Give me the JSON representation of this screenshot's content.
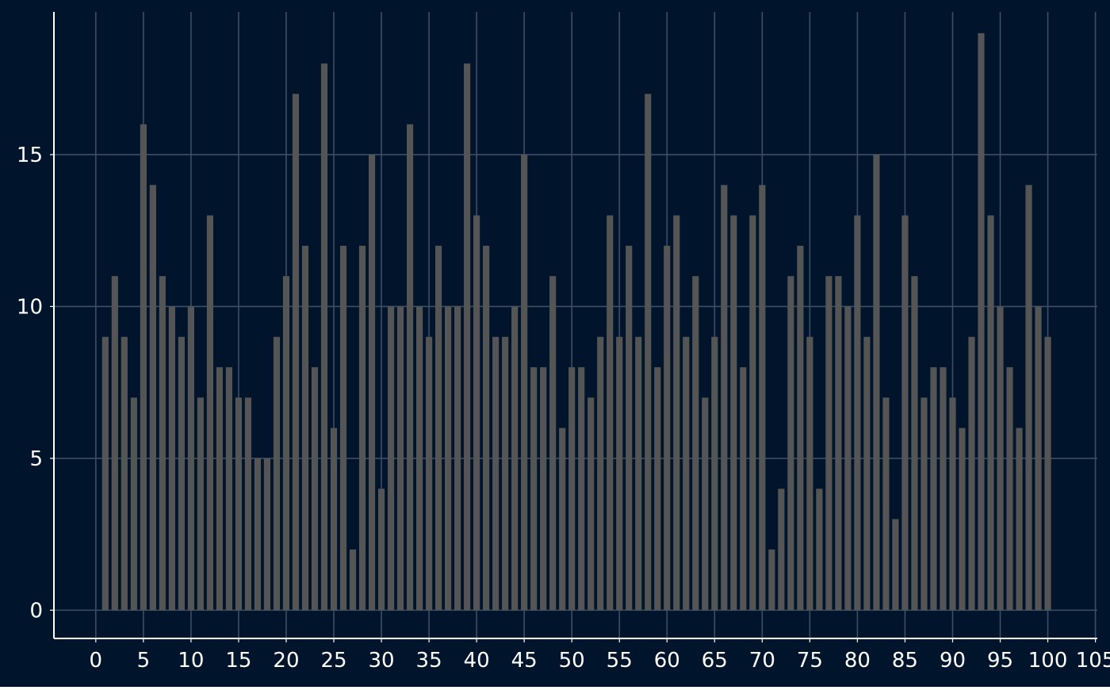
{
  "chart_data": {
    "type": "bar",
    "title": "",
    "xlabel": "",
    "ylabel": "",
    "x": [
      1,
      2,
      3,
      4,
      5,
      6,
      7,
      8,
      9,
      10,
      11,
      12,
      13,
      14,
      15,
      16,
      17,
      18,
      19,
      20,
      21,
      22,
      23,
      24,
      25,
      26,
      27,
      28,
      29,
      30,
      31,
      32,
      33,
      34,
      35,
      36,
      37,
      38,
      39,
      40,
      41,
      42,
      43,
      44,
      45,
      46,
      47,
      48,
      49,
      50,
      51,
      52,
      53,
      54,
      55,
      56,
      57,
      58,
      59,
      60,
      61,
      62,
      63,
      64,
      65,
      66,
      67,
      68,
      69,
      70,
      71,
      72,
      73,
      74,
      75,
      76,
      77,
      78,
      79,
      80,
      81,
      82,
      83,
      84,
      85,
      86,
      87,
      88,
      89,
      90,
      91,
      92,
      93,
      94,
      95,
      96,
      97,
      98,
      99,
      100
    ],
    "values": [
      9,
      11,
      9,
      7,
      16,
      14,
      11,
      10,
      9,
      10,
      7,
      13,
      8,
      8,
      7,
      7,
      5,
      5,
      9,
      11,
      17,
      12,
      8,
      18,
      6,
      12,
      2,
      12,
      15,
      4,
      10,
      10,
      16,
      10,
      9,
      12,
      10,
      10,
      18,
      13,
      12,
      9,
      9,
      10,
      15,
      8,
      8,
      11,
      6,
      8,
      8,
      7,
      9,
      13,
      9,
      12,
      9,
      17,
      8,
      12,
      13,
      9,
      11,
      7,
      9,
      14,
      13,
      8,
      13,
      14,
      2,
      4,
      11,
      12,
      9,
      4,
      11,
      11,
      10,
      13,
      9,
      15,
      7,
      3,
      13,
      11,
      7,
      8,
      8,
      7,
      6,
      9,
      19,
      13,
      10,
      8,
      6,
      14,
      10,
      9
    ],
    "xticks": [
      "0",
      "5",
      "10",
      "15",
      "20",
      "25",
      "30",
      "35",
      "40",
      "45",
      "50",
      "55",
      "60",
      "65",
      "70",
      "75",
      "80",
      "85",
      "90",
      "95",
      "100",
      "105"
    ],
    "yticks": [
      "0",
      "5",
      "10",
      "15"
    ],
    "xlim": [
      -4.4,
      105.2
    ],
    "ylim": [
      -0.93,
      19.7
    ],
    "grid": true,
    "colors": {
      "background": "#00152b",
      "grid": "#3c4e66",
      "bar": "#555555",
      "axis": "#ffffff",
      "tick_label": "#ffffff"
    }
  }
}
